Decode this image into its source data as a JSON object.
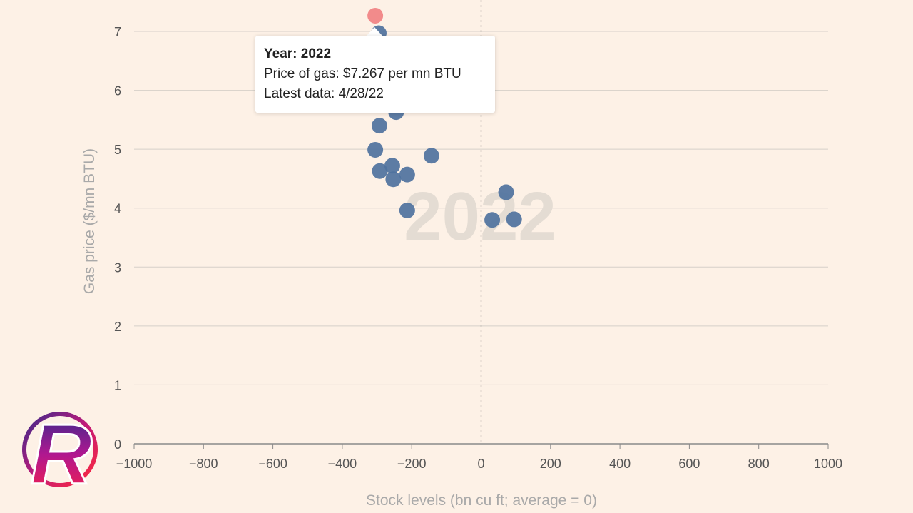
{
  "chart_data": {
    "type": "scatter",
    "xlabel": "Stock levels (bn cu ft; average = 0)",
    "ylabel": "Gas price ($/mn BTU)",
    "xlim": [
      -1000,
      1000
    ],
    "ylim": [
      0,
      7
    ],
    "x_ticks": [
      -1000,
      -800,
      -600,
      -400,
      -200,
      0,
      200,
      400,
      600,
      800,
      1000
    ],
    "y_ticks": [
      0,
      1,
      2,
      3,
      4,
      5,
      6,
      7
    ],
    "grid": "horizontal",
    "reference_line": {
      "x": 0,
      "style": "dashed"
    },
    "watermark": "2022",
    "highlight_color": "#f28b8b",
    "point_color": "#4f729e",
    "highlight": {
      "x": -305,
      "y": 7.267
    },
    "points": [
      {
        "x": -295,
        "y": 6.97
      },
      {
        "x": -245,
        "y": 5.63
      },
      {
        "x": -293,
        "y": 5.4
      },
      {
        "x": -305,
        "y": 4.99
      },
      {
        "x": -143,
        "y": 4.89
      },
      {
        "x": -292,
        "y": 4.63
      },
      {
        "x": -256,
        "y": 4.72
      },
      {
        "x": -213,
        "y": 4.57
      },
      {
        "x": -253,
        "y": 4.49
      },
      {
        "x": -213,
        "y": 3.96
      },
      {
        "x": 72,
        "y": 4.27
      },
      {
        "x": 32,
        "y": 3.8
      },
      {
        "x": 95,
        "y": 3.81
      }
    ]
  },
  "tooltip": {
    "year_line": "Year: 2022",
    "price_line": "Price of gas: $7.267 per mn BTU",
    "date_line": "Latest data: 4/28/22"
  },
  "logo": {
    "letter": "R",
    "icon": "channel-logo-icon"
  }
}
